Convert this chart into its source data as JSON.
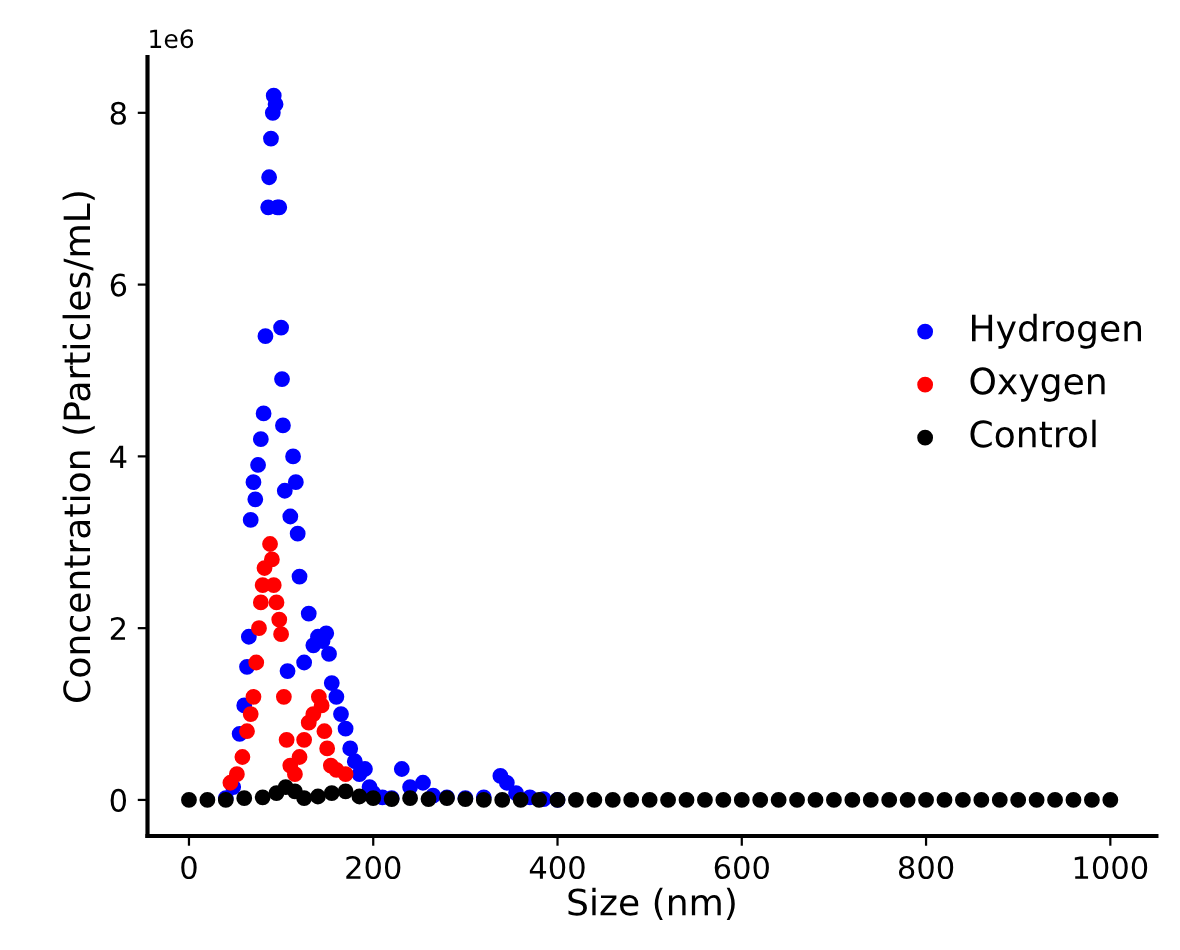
{
  "chart_data": {
    "type": "scatter",
    "xlabel": "Size (nm)",
    "ylabel": "Concentration (Particles/mL)",
    "annotations": [
      "1e6"
    ],
    "xlim": [
      -45,
      1050
    ],
    "ylim": [
      -0.42,
      8.65
    ],
    "xticks": [
      0,
      200,
      400,
      600,
      800,
      1000
    ],
    "yticks": [
      0,
      2,
      4,
      6,
      8
    ],
    "grid": false,
    "legend": "right",
    "marker": "circle",
    "series": [
      {
        "name": "Hydrogen",
        "color": "#0000ff",
        "x": [
          40,
          48,
          55,
          60,
          63,
          65,
          67,
          70,
          72,
          75,
          78,
          81,
          83,
          86,
          87,
          89,
          91,
          92,
          94,
          96,
          98,
          100,
          101,
          102,
          104,
          107,
          110,
          113,
          116,
          118,
          120,
          125,
          130,
          135,
          140,
          145,
          149,
          152,
          155,
          160,
          165,
          170,
          175,
          180,
          185,
          191,
          196,
          200,
          210,
          220,
          231,
          240,
          254,
          265,
          280,
          300,
          320,
          338,
          345,
          355,
          370,
          385,
          400
        ],
        "values": [
          0.02,
          0.15,
          0.77,
          1.1,
          1.55,
          1.9,
          3.26,
          3.7,
          3.5,
          3.9,
          4.2,
          4.5,
          5.4,
          6.9,
          7.25,
          7.7,
          8.0,
          8.2,
          8.1,
          6.9,
          6.9,
          5.5,
          4.9,
          4.36,
          3.6,
          1.5,
          3.3,
          4.0,
          3.7,
          3.1,
          2.6,
          1.6,
          2.17,
          1.8,
          1.9,
          1.85,
          1.94,
          1.7,
          1.36,
          1.2,
          1.0,
          0.83,
          0.6,
          0.45,
          0.3,
          0.36,
          0.15,
          0.08,
          0.03,
          0.02,
          0.36,
          0.15,
          0.2,
          0.05,
          0.03,
          0.02,
          0.03,
          0.28,
          0.2,
          0.08,
          0.03,
          0.01,
          0
        ]
      },
      {
        "name": "Oxygen",
        "color": "#ff0000",
        "x": [
          45,
          52,
          58,
          63,
          67,
          70,
          73,
          76,
          78,
          80,
          82,
          88,
          90,
          92,
          95,
          98,
          100,
          103,
          106,
          110,
          115,
          120,
          125,
          130,
          135,
          141,
          144,
          147,
          150,
          154,
          160,
          170
        ],
        "values": [
          0.2,
          0.3,
          0.5,
          0.8,
          1.0,
          1.2,
          1.6,
          2.0,
          2.3,
          2.5,
          2.7,
          2.98,
          2.8,
          2.5,
          2.3,
          2.1,
          1.93,
          1.2,
          0.7,
          0.4,
          0.3,
          0.5,
          0.7,
          0.9,
          1.0,
          1.2,
          1.1,
          0.8,
          0.6,
          0.4,
          0.35,
          0.3
        ]
      },
      {
        "name": "Control",
        "color": "#000000",
        "x": [
          0,
          20,
          40,
          60,
          80,
          95,
          105,
          115,
          125,
          140,
          155,
          170,
          185,
          200,
          220,
          240,
          260,
          280,
          300,
          320,
          340,
          360,
          380,
          400,
          420,
          440,
          460,
          480,
          500,
          520,
          540,
          560,
          580,
          600,
          620,
          640,
          660,
          680,
          700,
          720,
          740,
          760,
          780,
          800,
          820,
          840,
          860,
          880,
          900,
          920,
          940,
          960,
          980,
          1000
        ],
        "values": [
          0,
          0,
          0,
          0.02,
          0.03,
          0.08,
          0.15,
          0.1,
          0.02,
          0.04,
          0.08,
          0.1,
          0.04,
          0.02,
          0.01,
          0.02,
          0.01,
          0.02,
          0.01,
          0,
          0,
          0,
          0,
          0,
          0,
          0,
          0,
          0,
          0,
          0,
          0,
          0,
          0,
          0,
          0,
          0,
          0,
          0,
          0,
          0,
          0,
          0,
          0,
          0,
          0,
          0,
          0,
          0,
          0,
          0,
          0,
          0,
          0,
          0
        ]
      }
    ]
  }
}
